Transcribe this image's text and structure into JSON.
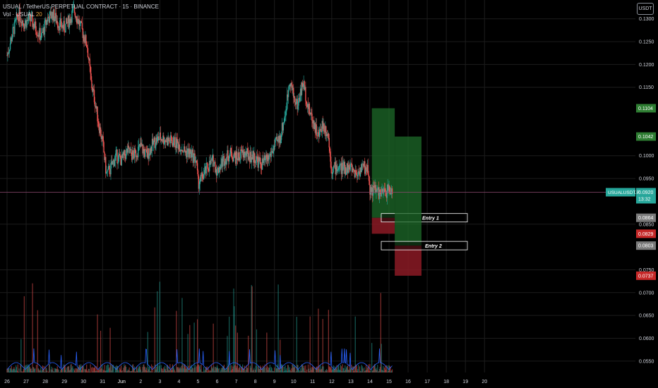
{
  "header": {
    "title": "USUAL / TetherUS PERPETUAL CONTRACT · 15 · BINANCE",
    "volume_label": "Vol · USUAL",
    "volume_value": "20"
  },
  "unit_button": "USDT",
  "colors": {
    "background": "#000000",
    "bull": "#26a69a",
    "bear": "#ef5350",
    "grid": "#1c1c1c",
    "axis_text": "#d1d4dc",
    "volume_ma": "#2962ff",
    "price_line": "#8e4a72",
    "target_zone": "#1e6b2a",
    "stop_zone": "#8b1a24",
    "current_price_tag": "#26a69a",
    "target_tag": "#2e7d32",
    "stop_tag": "#c62828",
    "entry_tag": "#7a7a7a"
  },
  "chart_data": {
    "type": "candlestick",
    "symbol": "USUALUSDT.P",
    "exchange": "BINANCE",
    "interval": "15",
    "y_axis_ticks": [
      "0.1300",
      "0.1250",
      "0.1200",
      "0.1150",
      "0.1000",
      "0.0950",
      "0.0850",
      "0.0750",
      "0.0700",
      "0.0650",
      "0.0600",
      "0.0550"
    ],
    "x_axis_ticks": [
      "26",
      "27",
      "28",
      "29",
      "30",
      "31",
      "Jun",
      "2",
      "3",
      "4",
      "5",
      "6",
      "7",
      "8",
      "9",
      "10",
      "11",
      "12",
      "13",
      "14",
      "15",
      "16",
      "17",
      "18",
      "19",
      "20"
    ],
    "ylim": [
      0.0525,
      0.1335
    ],
    "price_path": [
      [
        26,
        0.122
      ],
      [
        26.3,
        0.127
      ],
      [
        26.6,
        0.131
      ],
      [
        26.9,
        0.129
      ],
      [
        27.2,
        0.13
      ],
      [
        27.5,
        0.128
      ],
      [
        27.8,
        0.126
      ],
      [
        28.1,
        0.13
      ],
      [
        28.4,
        0.131
      ],
      [
        28.7,
        0.129
      ],
      [
        29.0,
        0.128
      ],
      [
        29.3,
        0.13
      ],
      [
        29.5,
        0.132
      ],
      [
        29.7,
        0.13
      ],
      [
        30.0,
        0.1265
      ],
      [
        30.2,
        0.124
      ],
      [
        30.4,
        0.116
      ],
      [
        30.6,
        0.112
      ],
      [
        30.8,
        0.107
      ],
      [
        31.0,
        0.103
      ],
      [
        31.2,
        0.096
      ],
      [
        31.4,
        0.097
      ],
      [
        31.7,
        0.1
      ],
      [
        32.0,
        0.099
      ],
      [
        32.3,
        0.101
      ],
      [
        32.6,
        0.1
      ],
      [
        33.0,
        0.102
      ],
      [
        33.3,
        0.1
      ],
      [
        33.7,
        0.103
      ],
      [
        34.0,
        0.104
      ],
      [
        34.3,
        0.1035
      ],
      [
        34.7,
        0.103
      ],
      [
        35.0,
        0.1025
      ],
      [
        35.3,
        0.101
      ],
      [
        35.6,
        0.1005
      ],
      [
        35.9,
        0.099
      ],
      [
        36.0,
        0.094
      ],
      [
        36.2,
        0.095
      ],
      [
        36.5,
        0.0975
      ],
      [
        36.8,
        0.099
      ],
      [
        37.0,
        0.0965
      ],
      [
        37.3,
        0.099
      ],
      [
        37.7,
        0.1005
      ],
      [
        38.0,
        0.0995
      ],
      [
        38.3,
        0.1005
      ],
      [
        38.7,
        0.1
      ],
      [
        39.0,
        0.0995
      ],
      [
        39.3,
        0.098
      ],
      [
        39.7,
        0.0995
      ],
      [
        40.0,
        0.102
      ],
      [
        40.3,
        0.104
      ],
      [
        40.6,
        0.11
      ],
      [
        40.8,
        0.117
      ],
      [
        41.0,
        0.113
      ],
      [
        41.2,
        0.111
      ],
      [
        41.5,
        0.116
      ],
      [
        41.8,
        0.11
      ],
      [
        42.0,
        0.108
      ],
      [
        42.3,
        0.104
      ],
      [
        42.5,
        0.107
      ],
      [
        42.8,
        0.105
      ],
      [
        43.0,
        0.097
      ],
      [
        43.3,
        0.0975
      ],
      [
        43.6,
        0.0972
      ],
      [
        44.0,
        0.0975
      ],
      [
        44.3,
        0.096
      ],
      [
        44.6,
        0.0975
      ],
      [
        44.9,
        0.097
      ],
      [
        45.0,
        0.0925
      ],
      [
        45.3,
        0.0925
      ],
      [
        45.6,
        0.0915
      ],
      [
        46.0,
        0.0925
      ],
      [
        46.2,
        0.0925
      ]
    ],
    "current_price": 0.092,
    "current_price_label": "USUALUSDT.P",
    "current_price_tag": "0.0920",
    "countdown": "13:32",
    "positions": [
      {
        "label": "Entry 1",
        "entry": 0.0864,
        "target": 0.1104,
        "stop": 0.0829,
        "entry_tag": "0.0864",
        "target_tag": "0.1104",
        "stop_tag": "0.0829",
        "from_day": 45.1,
        "to_day": 46.3
      },
      {
        "label": "Entry 2",
        "entry": 0.0803,
        "target": 0.1042,
        "stop": 0.0737,
        "entry_tag": "0.0803",
        "target_tag": "0.1042",
        "stop_tag": "0.0737",
        "from_day": 46.3,
        "to_day": 47.7
      }
    ],
    "grid": true
  }
}
